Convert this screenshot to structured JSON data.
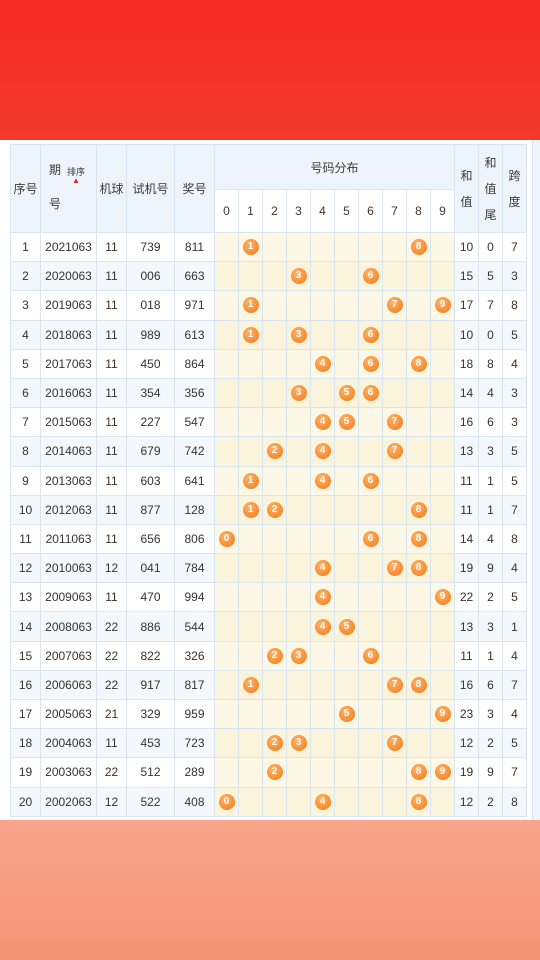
{
  "header": {
    "seq": "序号",
    "period_1": "期",
    "period_2": "号",
    "sort_label": "排序",
    "ball": "机球",
    "test_no": "试机号",
    "prize_no": "奖号",
    "dist_title": "号码分布",
    "sum_1": "和",
    "sum_2": "值",
    "tail_1": "和",
    "tail_2": "值",
    "tail_3": "尾",
    "span_1": "跨",
    "span_2": "度",
    "digits": [
      "0",
      "1",
      "2",
      "3",
      "4",
      "5",
      "6",
      "7",
      "8",
      "9"
    ]
  },
  "rows": [
    {
      "seq": "1",
      "period": "2021063",
      "ball": "11",
      "test": "739",
      "prize": "811",
      "balls": [
        1,
        8
      ],
      "sum": "10",
      "tail": "0",
      "span": "7"
    },
    {
      "seq": "2",
      "period": "2020063",
      "ball": "11",
      "test": "006",
      "prize": "663",
      "balls": [
        3,
        6
      ],
      "sum": "15",
      "tail": "5",
      "span": "3"
    },
    {
      "seq": "3",
      "period": "2019063",
      "ball": "11",
      "test": "018",
      "prize": "971",
      "balls": [
        1,
        7,
        9
      ],
      "sum": "17",
      "tail": "7",
      "span": "8"
    },
    {
      "seq": "4",
      "period": "2018063",
      "ball": "11",
      "test": "989",
      "prize": "613",
      "balls": [
        1,
        3,
        6
      ],
      "sum": "10",
      "tail": "0",
      "span": "5"
    },
    {
      "seq": "5",
      "period": "2017063",
      "ball": "11",
      "test": "450",
      "prize": "864",
      "balls": [
        4,
        6,
        8
      ],
      "sum": "18",
      "tail": "8",
      "span": "4"
    },
    {
      "seq": "6",
      "period": "2016063",
      "ball": "11",
      "test": "354",
      "prize": "356",
      "balls": [
        3,
        5,
        6
      ],
      "sum": "14",
      "tail": "4",
      "span": "3"
    },
    {
      "seq": "7",
      "period": "2015063",
      "ball": "11",
      "test": "227",
      "prize": "547",
      "balls": [
        4,
        5,
        7
      ],
      "sum": "16",
      "tail": "6",
      "span": "3"
    },
    {
      "seq": "8",
      "period": "2014063",
      "ball": "11",
      "test": "679",
      "prize": "742",
      "balls": [
        2,
        4,
        7
      ],
      "sum": "13",
      "tail": "3",
      "span": "5"
    },
    {
      "seq": "9",
      "period": "2013063",
      "ball": "11",
      "test": "603",
      "prize": "641",
      "balls": [
        1,
        4,
        6
      ],
      "sum": "11",
      "tail": "1",
      "span": "5"
    },
    {
      "seq": "10",
      "period": "2012063",
      "ball": "11",
      "test": "877",
      "prize": "128",
      "balls": [
        1,
        2,
        8
      ],
      "sum": "11",
      "tail": "1",
      "span": "7"
    },
    {
      "seq": "11",
      "period": "2011063",
      "ball": "11",
      "test": "656",
      "prize": "806",
      "balls": [
        0,
        6,
        8
      ],
      "sum": "14",
      "tail": "4",
      "span": "8"
    },
    {
      "seq": "12",
      "period": "2010063",
      "ball": "12",
      "test": "041",
      "prize": "784",
      "balls": [
        4,
        7,
        8
      ],
      "sum": "19",
      "tail": "9",
      "span": "4"
    },
    {
      "seq": "13",
      "period": "2009063",
      "ball": "11",
      "test": "470",
      "prize": "994",
      "balls": [
        4,
        9
      ],
      "sum": "22",
      "tail": "2",
      "span": "5"
    },
    {
      "seq": "14",
      "period": "2008063",
      "ball": "22",
      "test": "886",
      "prize": "544",
      "balls": [
        4,
        5
      ],
      "sum": "13",
      "tail": "3",
      "span": "1"
    },
    {
      "seq": "15",
      "period": "2007063",
      "ball": "22",
      "test": "822",
      "prize": "326",
      "balls": [
        2,
        3,
        6
      ],
      "sum": "11",
      "tail": "1",
      "span": "4"
    },
    {
      "seq": "16",
      "period": "2006063",
      "ball": "22",
      "test": "917",
      "prize": "817",
      "balls": [
        1,
        7,
        8
      ],
      "sum": "16",
      "tail": "6",
      "span": "7"
    },
    {
      "seq": "17",
      "period": "2005063",
      "ball": "21",
      "test": "329",
      "prize": "959",
      "balls": [
        5,
        9
      ],
      "sum": "23",
      "tail": "3",
      "span": "4"
    },
    {
      "seq": "18",
      "period": "2004063",
      "ball": "11",
      "test": "453",
      "prize": "723",
      "balls": [
        2,
        3,
        7
      ],
      "sum": "12",
      "tail": "2",
      "span": "5"
    },
    {
      "seq": "19",
      "period": "2003063",
      "ball": "22",
      "test": "512",
      "prize": "289",
      "balls": [
        2,
        8,
        9
      ],
      "sum": "19",
      "tail": "9",
      "span": "7"
    },
    {
      "seq": "20",
      "period": "2002063",
      "ball": "12",
      "test": "522",
      "prize": "408",
      "balls": [
        0,
        4,
        8
      ],
      "sum": "12",
      "tail": "2",
      "span": "8"
    }
  ],
  "colors": {
    "top_band": "#f52a22",
    "bottom_band": "#f8a58c",
    "ball": "#f7892c",
    "header_bg": "#eef4fb",
    "dist_bg": "#fdf8e6"
  }
}
